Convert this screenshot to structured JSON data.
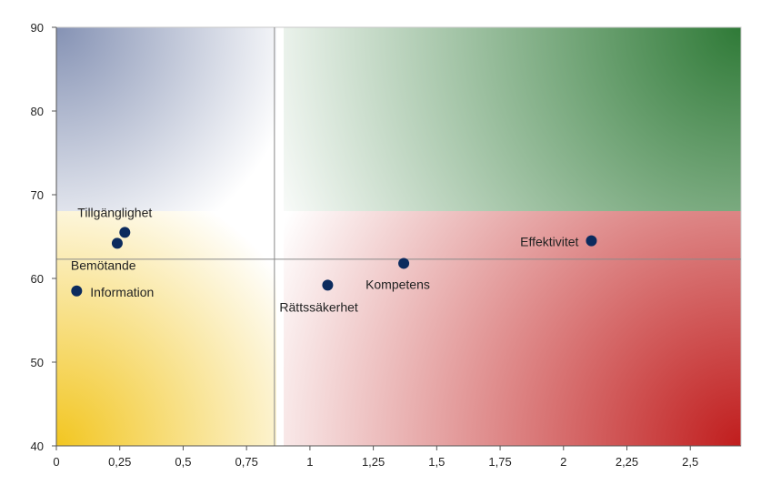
{
  "chart_data": {
    "type": "scatter",
    "title": "",
    "xlabel": "",
    "ylabel": "",
    "xlim": [
      0,
      2.7
    ],
    "ylim": [
      40,
      90
    ],
    "x_ticks": [
      0,
      0.25,
      0.5,
      0.75,
      1,
      1.25,
      1.5,
      1.75,
      2,
      2.25,
      2.5
    ],
    "x_tick_labels": [
      "0",
      "0,25",
      "0,5",
      "0,75",
      "1",
      "1,25",
      "1,5",
      "1,75",
      "2",
      "2,25",
      "2,5"
    ],
    "y_ticks": [
      40,
      50,
      60,
      70,
      80,
      90
    ],
    "y_tick_labels": [
      "40",
      "50",
      "60",
      "70",
      "80",
      "90"
    ],
    "reference_lines": {
      "x": 0.86,
      "y": 62.3
    },
    "quadrant_colors": {
      "top_left": "#8592b4",
      "top_right": "#2f7a37",
      "bottom_left": "#f2c621",
      "bottom_right": "#c01d1d"
    },
    "marker_color": "#0c2b5e",
    "grid": false,
    "legend": "none",
    "points": [
      {
        "label": "Tillgänglighet",
        "x": 0.27,
        "y": 65.5
      },
      {
        "label": "Bemötande",
        "x": 0.24,
        "y": 64.2
      },
      {
        "label": "Information",
        "x": 0.08,
        "y": 58.5
      },
      {
        "label": "Rättssäkerhet",
        "x": 1.07,
        "y": 59.2
      },
      {
        "label": "Kompetens",
        "x": 1.37,
        "y": 61.8
      },
      {
        "label": "Effektivitet",
        "x": 2.11,
        "y": 64.5
      }
    ]
  }
}
